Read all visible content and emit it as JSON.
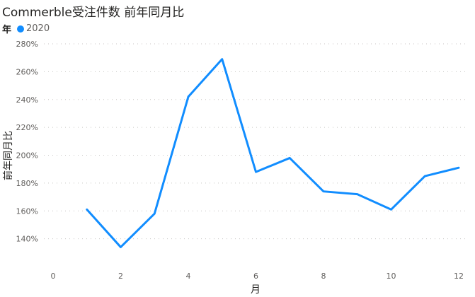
{
  "chart_data": {
    "type": "line",
    "title": "Commerble受注件数 前年同月比",
    "legend_title": "年",
    "legend_placement": "top-left",
    "xlabel": "月",
    "ylabel": "前年同月比",
    "x_ticks": [
      0,
      2,
      4,
      6,
      8,
      10,
      12
    ],
    "y_ticks": [
      140,
      160,
      180,
      200,
      220,
      240,
      260,
      280
    ],
    "y_tick_suffix": "%",
    "xlim": [
      0,
      12
    ],
    "ylim": [
      120,
      280
    ],
    "grid": "horizontal dotted",
    "series": [
      {
        "name": "2020",
        "color": "#118dff",
        "x": [
          1,
          2,
          3,
          4,
          5,
          6,
          7,
          8,
          9,
          10,
          11,
          12
        ],
        "values": [
          161,
          134,
          158,
          242,
          269,
          188,
          198,
          174,
          172,
          161,
          185,
          191
        ]
      }
    ]
  }
}
